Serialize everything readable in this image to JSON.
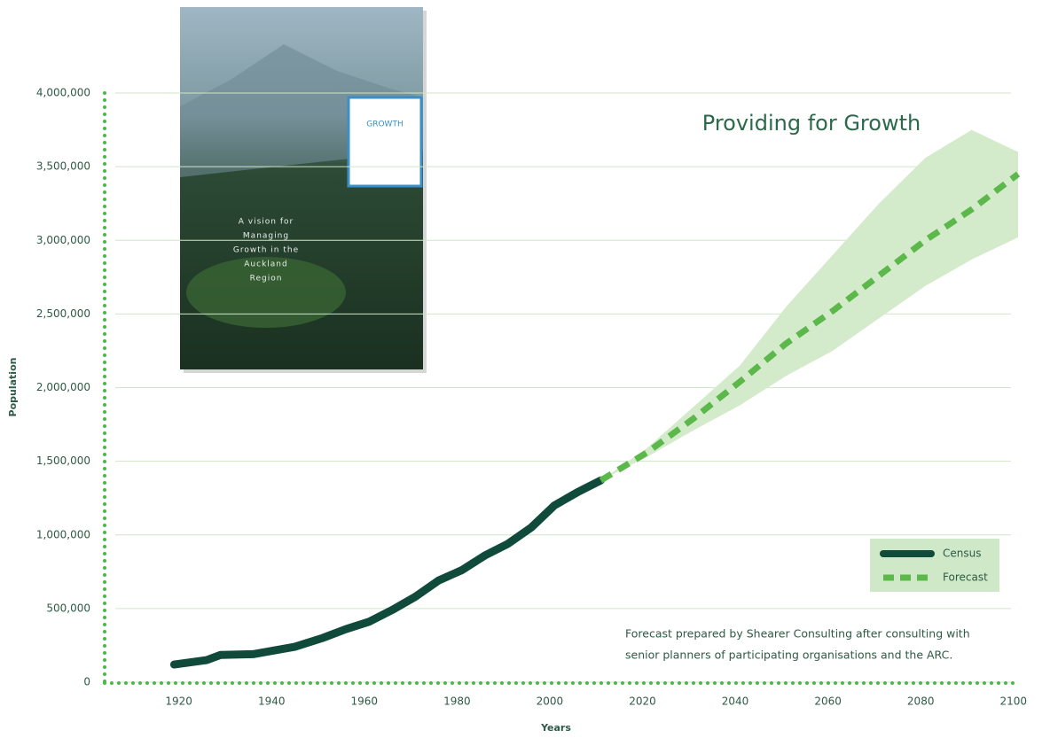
{
  "chart_data": {
    "type": "line",
    "title": "Providing for Growth",
    "x_label": "Years",
    "y_label": "Population",
    "xlim": [
      1904,
      2101
    ],
    "xticks": [
      1920,
      1940,
      1960,
      1980,
      2000,
      2020,
      2040,
      2060,
      2080,
      2100
    ],
    "ylim": [
      0,
      4000000
    ],
    "yticks": [
      0,
      {
        "value": 500000,
        "label": "500,000"
      },
      {
        "value": 1000000,
        "label": "1,000,000"
      },
      {
        "value": 1500000,
        "label": "1,500,000"
      },
      {
        "value": 2000000,
        "label": "2,000,000"
      },
      {
        "value": 2500000,
        "label": "2,500,000"
      },
      {
        "value": 3000000,
        "label": "3,000,000"
      },
      {
        "value": 3500000,
        "label": "3,500,000"
      },
      {
        "value": 4000000,
        "label": "4,000,000"
      }
    ],
    "grid": true,
    "legend": "bottom-right",
    "series": [
      {
        "name": "Census",
        "color": "#0f4a3a",
        "dashed": false,
        "x": [
          1919,
          1926,
          1929,
          1936,
          1945,
          1951,
          1956,
          1961,
          1966,
          1971,
          1976,
          1981,
          1986,
          1991,
          1996,
          2001,
          2006,
          2011
        ],
        "values": [
          120000,
          150000,
          185000,
          190000,
          240000,
          300000,
          360000,
          410000,
          490000,
          580000,
          690000,
          760000,
          860000,
          940000,
          1050000,
          1200000,
          1290000,
          1370000
        ]
      },
      {
        "name": "Forecast",
        "color": "#5cb84a",
        "dashed": true,
        "x": [
          2011,
          2021,
          2031,
          2041,
          2051,
          2061,
          2071,
          2081,
          2091,
          2101
        ],
        "values": [
          1370000,
          1560000,
          1790000,
          2040000,
          2300000,
          2520000,
          2760000,
          3000000,
          3210000,
          3450000
        ]
      }
    ],
    "band": {
      "color": "#d3ebcb",
      "x": [
        2011,
        2021,
        2031,
        2041,
        2051,
        2061,
        2071,
        2081,
        2091,
        2101
      ],
      "upper": [
        1370000,
        1590000,
        1870000,
        2150000,
        2550000,
        2900000,
        3250000,
        3560000,
        3750000,
        3600000
      ],
      "lower": [
        1370000,
        1530000,
        1710000,
        1880000,
        2080000,
        2250000,
        2470000,
        2690000,
        2870000,
        3020000
      ]
    },
    "note": [
      "Forecast prepared by Shearer Consulting after consulting with",
      "senior planners of participating organisations and the ARC."
    ],
    "cover": {
      "heading": "GROWTH",
      "text": [
        "A vision for",
        "Managing",
        "Growth in the",
        "Auckland",
        "Region"
      ]
    }
  }
}
